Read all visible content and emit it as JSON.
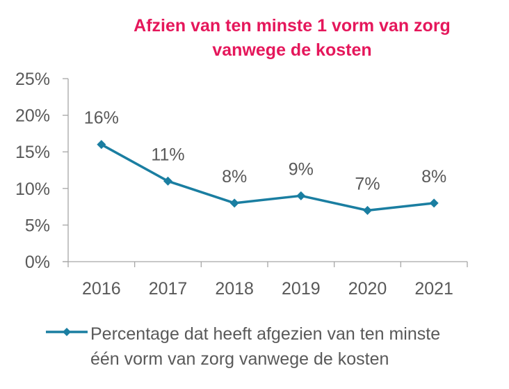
{
  "chart_data": {
    "type": "line",
    "title": "Afzien van ten minste 1 vorm van zorg vanwege de kosten",
    "title_lines": [
      "Afzien van ten minste 1 vorm van zorg",
      "vanwege de kosten"
    ],
    "xlabel": "",
    "ylabel": "",
    "categories": [
      "2016",
      "2017",
      "2018",
      "2019",
      "2020",
      "2021"
    ],
    "series": [
      {
        "name": "Percentage dat heeft afgezien van ten minste één vorm van zorg vanwege de kosten",
        "values": [
          16,
          11,
          8,
          9,
          7,
          8
        ],
        "data_labels": [
          "16%",
          "11%",
          "8%",
          "9%",
          "7%",
          "8%"
        ],
        "color": "#1a7ea1",
        "marker": "diamond"
      }
    ],
    "ylim": [
      0,
      25
    ],
    "yticks": [
      0,
      5,
      10,
      15,
      20,
      25
    ],
    "ytick_labels": [
      "0%",
      "5%",
      "10%",
      "15%",
      "20%",
      "25%"
    ],
    "grid": false,
    "legend_position": "bottom",
    "legend_lines": [
      "Percentage dat heeft afgezien van ten minste",
      "één vorm van zorg vanwege de kosten"
    ]
  },
  "colors": {
    "title": "#e5175b",
    "series": "#1a7ea1",
    "text": "#595959",
    "axis": "#a6a6a6"
  }
}
